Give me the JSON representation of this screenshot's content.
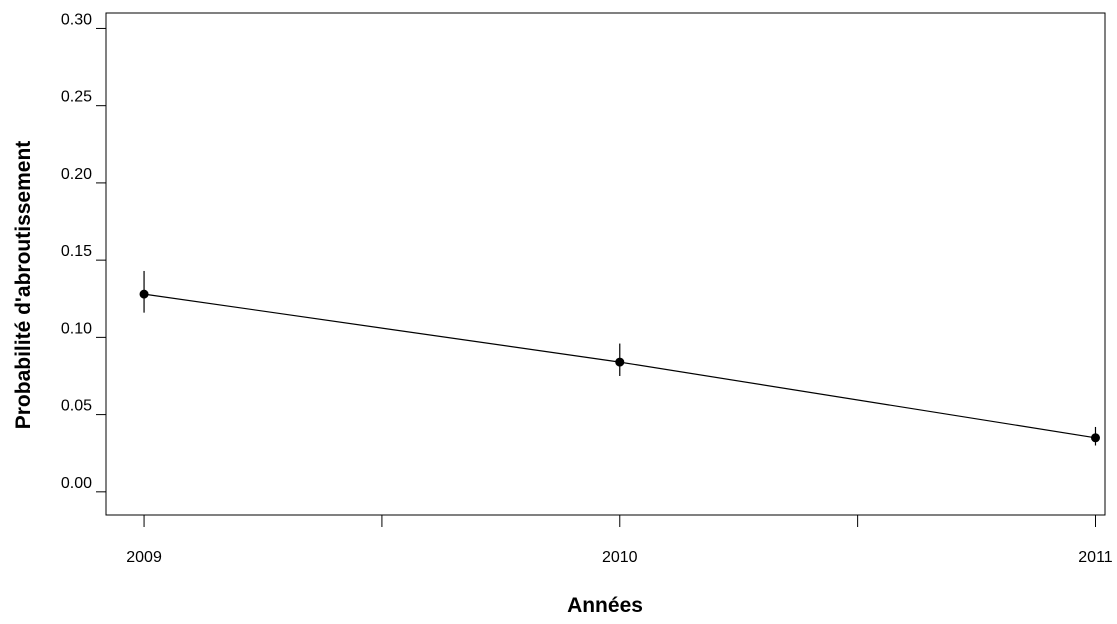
{
  "chart_data": {
    "type": "line",
    "title": "",
    "xlabel": "Années",
    "ylabel": "Probabilité d'abroutissement",
    "x": [
      2009,
      2010,
      2011
    ],
    "x_tick_labels": [
      "2009",
      "2010",
      "2011"
    ],
    "series": [
      {
        "values": [
          0.128,
          0.084,
          0.035
        ],
        "ci_lower": [
          0.116,
          0.075,
          0.03
        ],
        "ci_upper": [
          0.143,
          0.096,
          0.042
        ]
      }
    ],
    "ylim": [
      -0.015,
      0.31
    ],
    "y_ticks": [
      0.0,
      0.05,
      0.1,
      0.15,
      0.2,
      0.25,
      0.3
    ],
    "y_tick_labels": [
      "0.00",
      "0.05",
      "0.10",
      "0.15",
      "0.20",
      "0.25",
      "0.30"
    ],
    "xlim": [
      2008.92,
      2011.02
    ],
    "x_minor_ticks": [
      2009.5,
      2010.5
    ],
    "grid": false,
    "legend": "none",
    "colors": {
      "line": "#000000",
      "marker": "#000000"
    }
  }
}
